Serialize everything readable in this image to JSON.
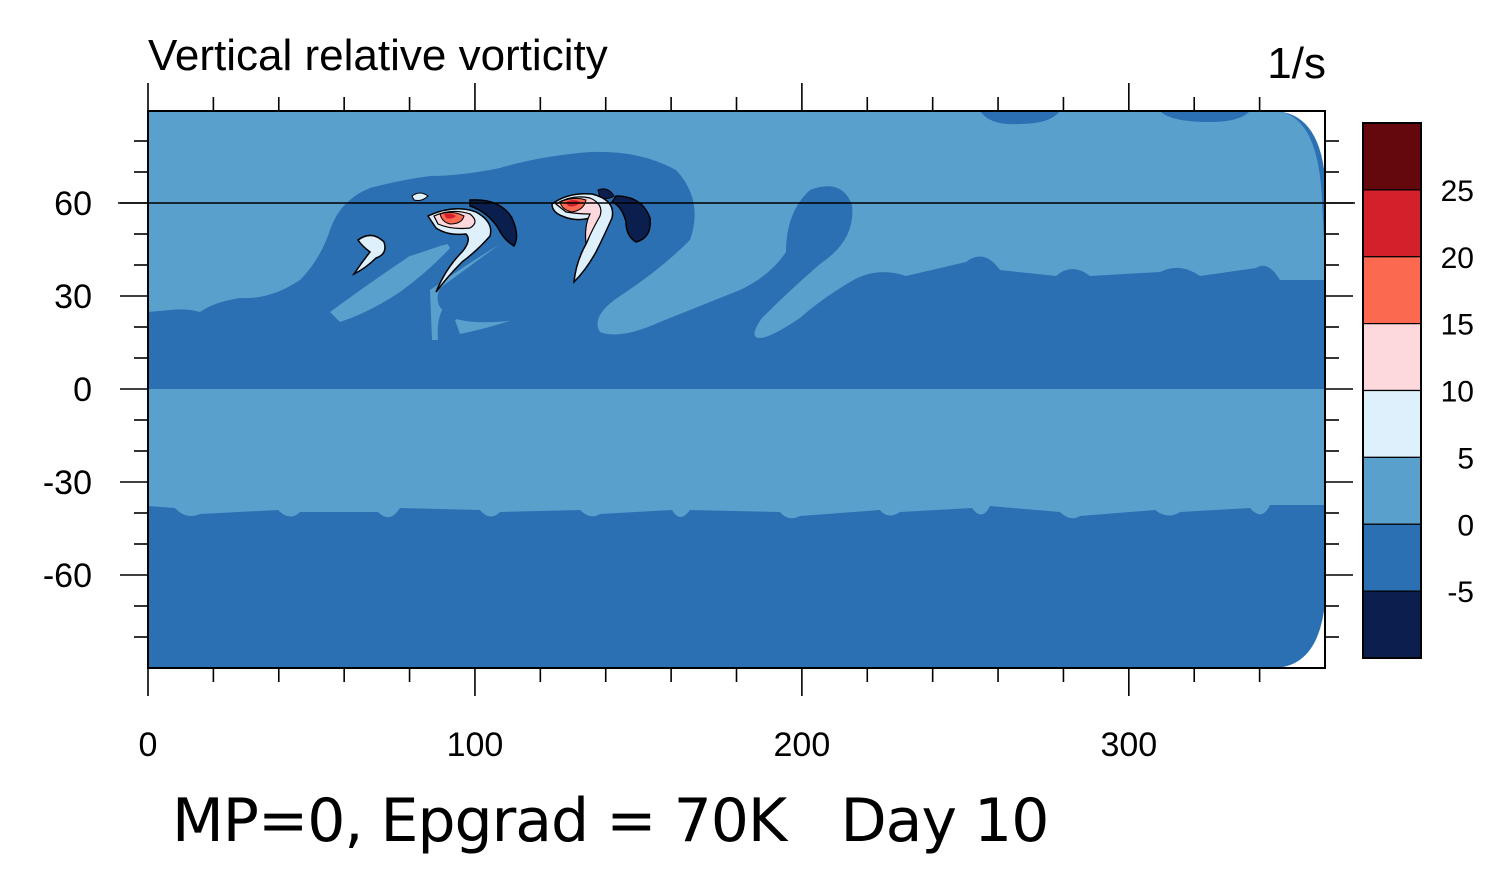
{
  "chart_data": {
    "type": "heatmap",
    "title": "Vertical relative vorticity",
    "units": "1/s",
    "x_ticks": [
      0,
      100,
      200,
      300
    ],
    "y_ticks": [
      60,
      30,
      0,
      -30,
      -60
    ],
    "xlim": [
      0,
      360
    ],
    "ylim": [
      -90,
      90
    ],
    "reference_line_lat": 60,
    "colorbar": {
      "labels": [
        "25",
        "20",
        "15",
        "10",
        "5",
        "0",
        "-5"
      ],
      "levels": [
        -5,
        0,
        5,
        10,
        15,
        20,
        25
      ],
      "colors": [
        "#0b1f4e",
        "#2c70b4",
        "#5aa0cc",
        "#ddf0fb",
        "#fdd9dd",
        "#fb6a50",
        "#d3202a",
        "#65080d"
      ]
    }
  },
  "caption": "MP=0, Epgrad = 70K   Day 10",
  "colors": {
    "neg5_to_0": "#2c70b4",
    "zero_to_5": "#5aa0cc",
    "below_neg5": "#0b1f4e"
  }
}
